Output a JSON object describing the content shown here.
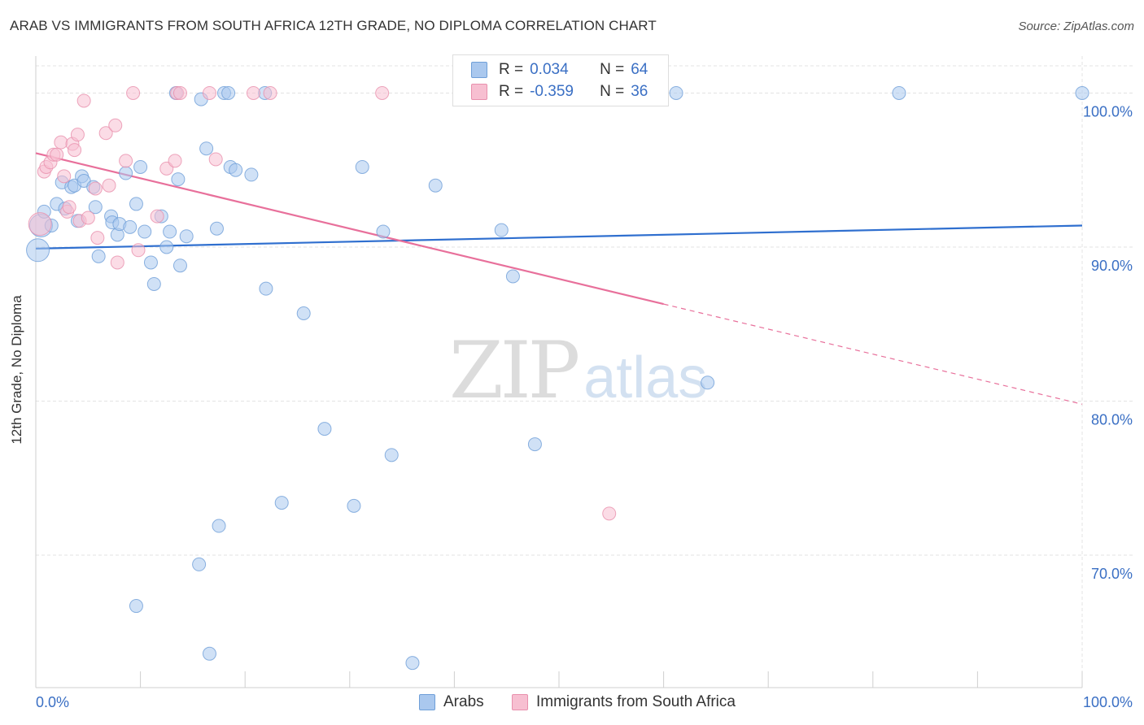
{
  "title": "ARAB VS IMMIGRANTS FROM SOUTH AFRICA 12TH GRADE, NO DIPLOMA CORRELATION CHART",
  "source": "Source: ZipAtlas.com",
  "watermark": {
    "zip": "ZIP",
    "atlas": "atlas"
  },
  "legend": {
    "rows": [
      {
        "r_label": "R =",
        "r_value": "0.034",
        "n_label": "N =",
        "n_value": "64",
        "color": "#aac8ee",
        "border": "#6f9fd8"
      },
      {
        "r_label": "R =",
        "r_value": "-0.359",
        "n_label": "N =",
        "n_value": "36",
        "color": "#f7bfd1",
        "border": "#e890ad"
      }
    ]
  },
  "bottom_legend": [
    {
      "label": "Arabs",
      "color": "#aac8ee",
      "border": "#6f9fd8"
    },
    {
      "label": "Immigrants from South Africa",
      "color": "#f7bfd1",
      "border": "#e890ad"
    }
  ],
  "chart_data": {
    "type": "scatter",
    "title": "ARAB VS IMMIGRANTS FROM SOUTH AFRICA 12TH GRADE, NO DIPLOMA CORRELATION CHART",
    "xlabel": "",
    "ylabel": "12th Grade, No Diploma",
    "xlim": [
      0,
      100
    ],
    "ylim": [
      61.4,
      102.4
    ],
    "x_tick_labels": [
      "0.0%",
      "100.0%"
    ],
    "y_ticks": [
      70,
      80,
      90,
      100
    ],
    "y_tick_labels": [
      "70.0%",
      "80.0%",
      "90.0%",
      "100.0%"
    ],
    "grid": true,
    "series": [
      {
        "name": "Arabs",
        "color": "#aac8ee",
        "stroke": "#6f9fd8",
        "points": [
          [
            0.2,
            89.8
          ],
          [
            0.5,
            91.4
          ],
          [
            0.8,
            92.3
          ],
          [
            1.5,
            91.4
          ],
          [
            2.0,
            92.8
          ],
          [
            2.5,
            94.2
          ],
          [
            2.8,
            92.5
          ],
          [
            3.4,
            93.9
          ],
          [
            3.7,
            94.0
          ],
          [
            4.0,
            91.7
          ],
          [
            4.4,
            94.6
          ],
          [
            4.6,
            94.3
          ],
          [
            5.5,
            93.9
          ],
          [
            5.7,
            92.6
          ],
          [
            6.0,
            89.4
          ],
          [
            7.2,
            92.0
          ],
          [
            7.3,
            91.6
          ],
          [
            7.8,
            90.8
          ],
          [
            8.0,
            91.5
          ],
          [
            8.6,
            94.8
          ],
          [
            9.0,
            91.3
          ],
          [
            9.6,
            92.8
          ],
          [
            10.0,
            95.2
          ],
          [
            10.4,
            91.0
          ],
          [
            11.0,
            89.0
          ],
          [
            11.3,
            87.6
          ],
          [
            12.0,
            92.0
          ],
          [
            12.5,
            90.0
          ],
          [
            12.8,
            91.0
          ],
          [
            13.4,
            100.0
          ],
          [
            13.6,
            94.4
          ],
          [
            13.8,
            88.8
          ],
          [
            14.4,
            90.7
          ],
          [
            15.8,
            99.6
          ],
          [
            16.3,
            96.4
          ],
          [
            17.3,
            91.2
          ],
          [
            18.0,
            100.0
          ],
          [
            18.4,
            100.0
          ],
          [
            18.6,
            95.2
          ],
          [
            19.1,
            95.0
          ],
          [
            20.6,
            94.7
          ],
          [
            21.9,
            100.0
          ],
          [
            22.0,
            87.3
          ],
          [
            25.6,
            85.7
          ],
          [
            27.6,
            78.2
          ],
          [
            31.2,
            95.2
          ],
          [
            33.2,
            91.0
          ],
          [
            34.0,
            76.5
          ],
          [
            38.2,
            94.0
          ],
          [
            44.5,
            91.1
          ],
          [
            45.6,
            88.1
          ],
          [
            47.2,
            100.0
          ],
          [
            47.7,
            77.2
          ],
          [
            61.2,
            100.0
          ],
          [
            64.2,
            81.2
          ],
          [
            82.5,
            100.0
          ],
          [
            100.0,
            100.0
          ],
          [
            23.5,
            73.4
          ],
          [
            30.4,
            73.2
          ],
          [
            17.5,
            71.9
          ],
          [
            15.6,
            69.4
          ],
          [
            9.6,
            66.7
          ],
          [
            16.6,
            63.6
          ],
          [
            36.0,
            63.0
          ]
        ]
      },
      {
        "name": "Immigrants from South Africa",
        "color": "#f7bfd1",
        "stroke": "#e890ad",
        "points": [
          [
            0.4,
            91.5
          ],
          [
            0.8,
            94.9
          ],
          [
            1.0,
            95.2
          ],
          [
            1.4,
            95.5
          ],
          [
            1.7,
            96.0
          ],
          [
            2.0,
            96.0
          ],
          [
            2.4,
            96.8
          ],
          [
            2.7,
            94.6
          ],
          [
            3.0,
            92.3
          ],
          [
            3.2,
            92.6
          ],
          [
            3.5,
            96.7
          ],
          [
            3.7,
            96.3
          ],
          [
            4.0,
            97.3
          ],
          [
            4.2,
            91.7
          ],
          [
            4.6,
            99.5
          ],
          [
            5.0,
            91.9
          ],
          [
            5.7,
            93.8
          ],
          [
            5.9,
            90.6
          ],
          [
            6.7,
            97.4
          ],
          [
            7.0,
            94.0
          ],
          [
            7.6,
            97.9
          ],
          [
            7.8,
            89.0
          ],
          [
            8.6,
            95.6
          ],
          [
            9.3,
            100.0
          ],
          [
            9.8,
            89.8
          ],
          [
            11.6,
            92.0
          ],
          [
            12.5,
            95.1
          ],
          [
            13.3,
            95.6
          ],
          [
            13.5,
            100.0
          ],
          [
            13.8,
            100.0
          ],
          [
            16.6,
            100.0
          ],
          [
            17.2,
            95.7
          ],
          [
            20.8,
            100.0
          ],
          [
            22.4,
            100.0
          ],
          [
            33.1,
            100.0
          ],
          [
            54.8,
            72.7
          ]
        ]
      }
    ],
    "trend_lines": [
      {
        "series": "Arabs",
        "from": [
          0,
          89.9
        ],
        "to": [
          100,
          91.4
        ],
        "color": "#2f6fcf"
      },
      {
        "series": "Immigrants from South Africa",
        "from": [
          0,
          96.1
        ],
        "to": [
          60,
          86.3
        ],
        "dashed_to": [
          100,
          79.8
        ],
        "color": "#e8709b"
      }
    ]
  }
}
